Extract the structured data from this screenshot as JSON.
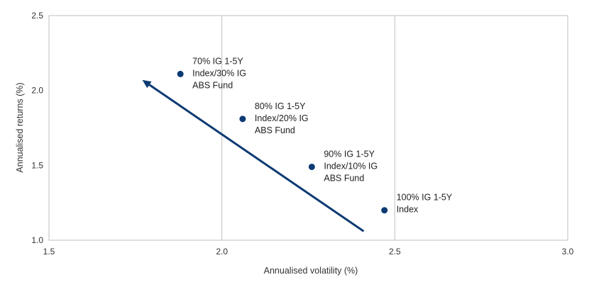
{
  "chart_data": {
    "type": "scatter",
    "title": "",
    "xlabel": "Annualised volatility (%)",
    "ylabel": "Annualised returns (%)",
    "xlim": [
      1.5,
      3.0
    ],
    "ylim": [
      1.0,
      2.5
    ],
    "x_ticks": [
      "1.5",
      "2.0",
      "2.5",
      "3.0"
    ],
    "y_ticks": [
      "1.0",
      "1.5",
      "2.0",
      "2.5"
    ],
    "grid": "vertical",
    "points": [
      {
        "x": 1.88,
        "y": 2.11,
        "label": [
          "70% IG 1-5Y",
          "Index/30% IG",
          "ABS Fund"
        ]
      },
      {
        "x": 2.06,
        "y": 1.81,
        "label": [
          "80% IG 1-5Y",
          "Index/20% IG",
          "ABS Fund"
        ]
      },
      {
        "x": 2.26,
        "y": 1.49,
        "label": [
          "90% IG 1-5Y",
          "Index/10% IG",
          "ABS Fund"
        ]
      },
      {
        "x": 2.47,
        "y": 1.2,
        "label": [
          "100% IG 1-5Y",
          "Index"
        ]
      }
    ],
    "arrow": {
      "from": {
        "x": 2.41,
        "y": 1.06
      },
      "to": {
        "x": 1.77,
        "y": 2.07
      }
    },
    "colors": {
      "marker": "#0c3a73",
      "arrow": "#0c3a73",
      "grid": "#bfbfbf",
      "frame": "#bfbfbf"
    }
  }
}
